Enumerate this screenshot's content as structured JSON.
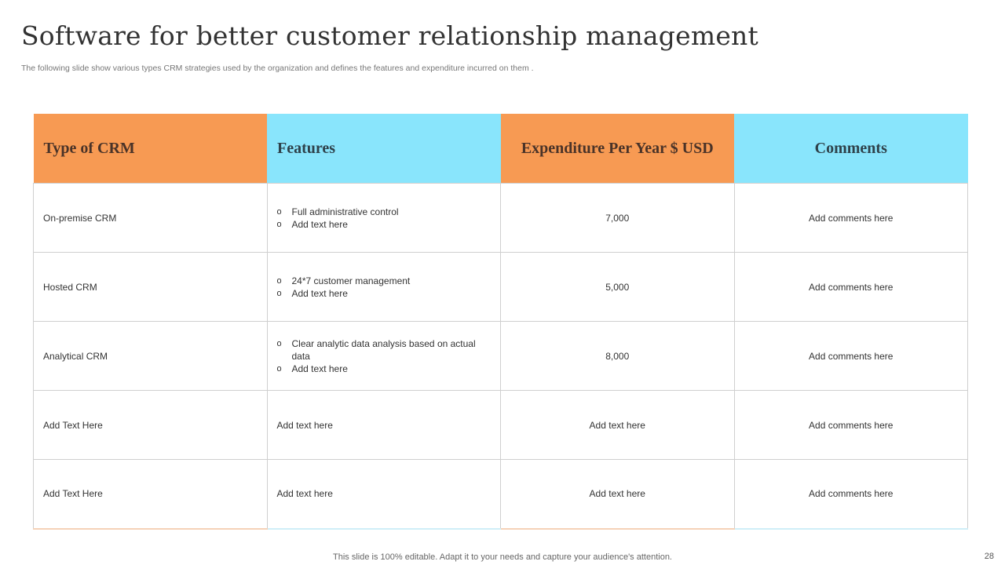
{
  "title": "Software for better customer relationship management",
  "subtitle": "The following slide show various types CRM strategies used by the organization and defines the features and expenditure incurred on them .",
  "colors": {
    "orange": "#f79a53",
    "cyan": "#89e5fc"
  },
  "table": {
    "headers": [
      "Type of CRM",
      "Features",
      "Expenditure Per Year $ USD",
      "Comments"
    ],
    "rows": [
      {
        "type": "On-premise  CRM",
        "features": [
          "Full administrative  control",
          "Add text here"
        ],
        "expenditure": "7,000",
        "comment": "Add comments here"
      },
      {
        "type": "Hosted CRM",
        "features": [
          "24*7 customer management",
          "Add text here"
        ],
        "expenditure": "5,000",
        "comment": "Add comments here"
      },
      {
        "type": "Analytical CRM",
        "features": [
          "Clear analytic data analysis based on actual data",
          "Add text here"
        ],
        "expenditure": "8,000",
        "comment": "Add comments here"
      },
      {
        "type": "Add Text Here",
        "features_text": "Add text here",
        "expenditure": "Add text here",
        "comment": "Add comments here"
      },
      {
        "type": "Add Text Here",
        "features_text": "Add text here",
        "expenditure": "Add text here",
        "comment": "Add comments here"
      }
    ]
  },
  "footer": "This slide is 100% editable. Adapt it to your needs and capture your audience's attention.",
  "page_number": "28"
}
